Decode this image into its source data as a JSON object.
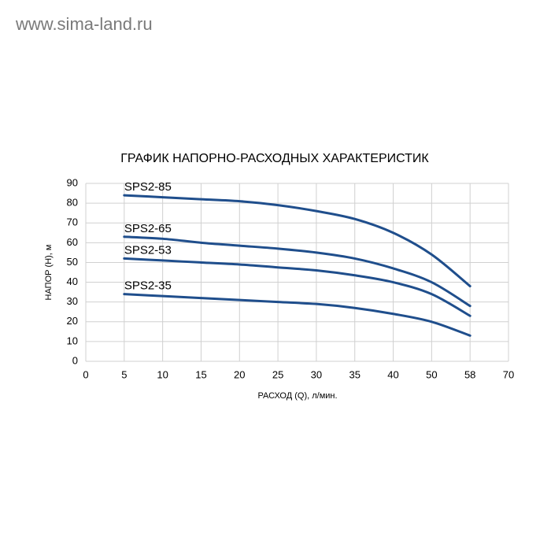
{
  "header": {
    "site": "www.sima-land.ru"
  },
  "chart_data": {
    "type": "line",
    "title": "ГРАФИК НАПОРНО-РАСХОДНЫХ ХАРАКТЕРИСТИК",
    "x_label": "РАСХОД (Q), л/мин.",
    "y_label": "НАПОР (Н), м",
    "categories": [
      "0",
      "5",
      "10",
      "15",
      "20",
      "25",
      "30",
      "35",
      "40",
      "50",
      "58",
      "70"
    ],
    "series": [
      {
        "name": "SPS2-85",
        "color": "#1f4e8c",
        "values": [
          null,
          84,
          83,
          82,
          81,
          79,
          76,
          72,
          65,
          54,
          38,
          null
        ]
      },
      {
        "name": "SPS2-65",
        "color": "#1f4e8c",
        "values": [
          null,
          63,
          62,
          60,
          58.5,
          57,
          55,
          52,
          47,
          40,
          28,
          null
        ]
      },
      {
        "name": "SPS2-53",
        "color": "#1f4e8c",
        "values": [
          null,
          52,
          51,
          50,
          49,
          47.5,
          46,
          43.5,
          40,
          34,
          23,
          null
        ]
      },
      {
        "name": "SPS2-35",
        "color": "#1f4e8c",
        "values": [
          null,
          34,
          33,
          32,
          31,
          30,
          29,
          27,
          24,
          20,
          13,
          null
        ]
      }
    ],
    "ylim": [
      0,
      90
    ],
    "yticks": [
      0,
      10,
      20,
      30,
      40,
      50,
      60,
      70,
      80,
      90
    ],
    "grid": true
  }
}
